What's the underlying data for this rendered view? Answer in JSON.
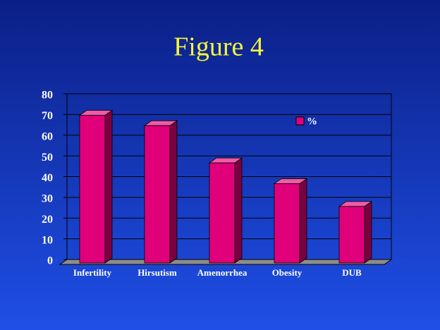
{
  "chart_data": {
    "type": "bar",
    "title": "Figure 4",
    "categories": [
      "Infertility",
      "Hirsutism",
      "Amenorrhea",
      "Obesity",
      "DUB"
    ],
    "series": [
      {
        "name": "%",
        "color": "#e0007a",
        "values": [
          72,
          67,
          49,
          39,
          28
        ]
      }
    ],
    "ylim": [
      0,
      80
    ],
    "yticks": [
      0,
      10,
      20,
      30,
      40,
      50,
      60,
      70,
      80
    ],
    "grid": true,
    "legend": "upper right"
  }
}
